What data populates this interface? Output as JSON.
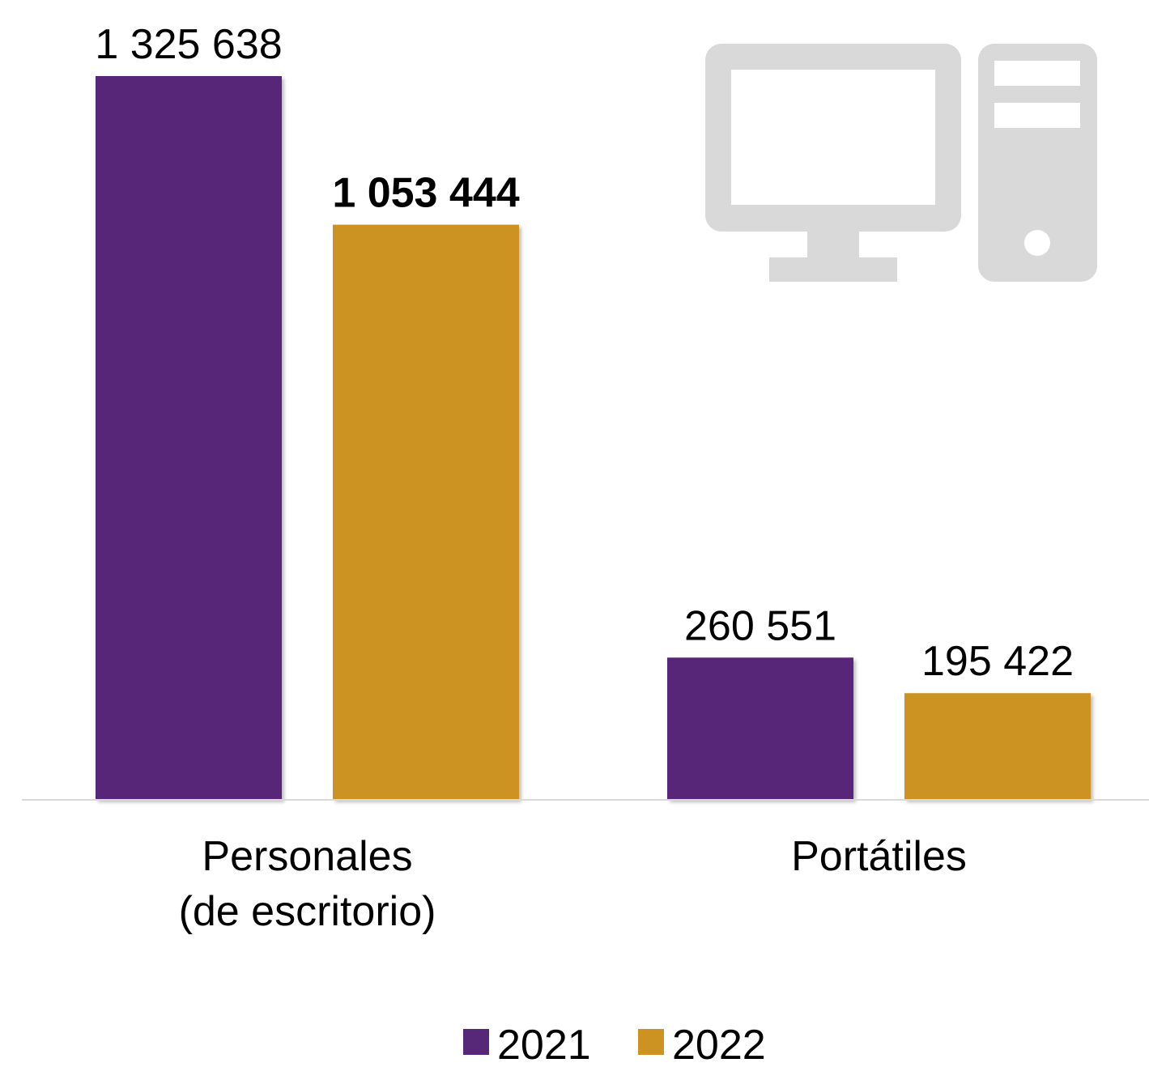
{
  "chart_data": {
    "type": "bar",
    "categories": [
      "Personales\n(de escritorio)",
      "Portátiles"
    ],
    "category_lines": [
      [
        "Personales",
        "(de escritorio)"
      ],
      [
        "Portátiles"
      ]
    ],
    "series": [
      {
        "name": "2021",
        "color": "#582878",
        "values": [
          1325638,
          260551
        ],
        "labels": [
          "1 325 638",
          "260 551"
        ],
        "bold": [
          false,
          false
        ]
      },
      {
        "name": "2022",
        "color": "#CC9322",
        "values": [
          1053444,
          195422
        ],
        "labels": [
          "1 053 444",
          "195 422"
        ],
        "bold": [
          true,
          false
        ]
      }
    ],
    "legend": "bottom-center",
    "grid": false,
    "ylim": [
      0,
      1325638
    ],
    "icon": "desktop-computer-icon",
    "icon_color": "#D9D9D9",
    "baseline_color": "#D9D9D9"
  }
}
